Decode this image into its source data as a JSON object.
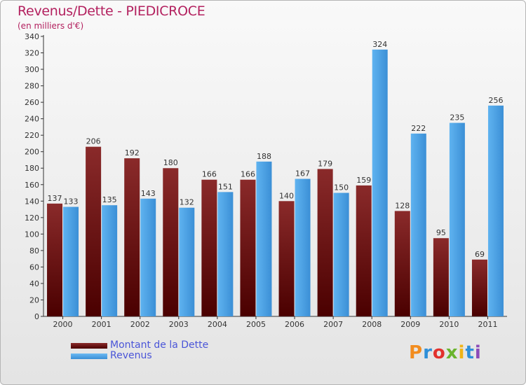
{
  "header": {
    "title": "Revenus/Dette - PIEDICROCE",
    "subtitle": "(en milliers d'€)"
  },
  "colors": {
    "debt": "#7a1717",
    "revenue": "#4ea3e6",
    "title": "#b3215f",
    "legend_text": "#4a55d8"
  },
  "legend": {
    "items": [
      {
        "label": "Montant de la Dette",
        "color": "#6b0f10"
      },
      {
        "label": "Revenus",
        "color": "#4ea3e6"
      }
    ]
  },
  "logo": {
    "text": "Proxiti"
  },
  "chart_data": {
    "type": "bar",
    "title": "Revenus/Dette - PIEDICROCE",
    "subtitle": "(en milliers d'€)",
    "xlabel": "",
    "ylabel": "",
    "categories": [
      "2000",
      "2001",
      "2002",
      "2003",
      "2004",
      "2005",
      "2006",
      "2007",
      "2008",
      "2009",
      "2010",
      "2011"
    ],
    "series": [
      {
        "name": "Montant de la Dette",
        "values": [
          137,
          206,
          192,
          180,
          166,
          166,
          140,
          179,
          159,
          128,
          95,
          69
        ]
      },
      {
        "name": "Revenus",
        "values": [
          133,
          135,
          143,
          132,
          151,
          188,
          167,
          150,
          324,
          222,
          235,
          256
        ]
      }
    ],
    "ylim": [
      0,
      340
    ],
    "ytick_step": 20,
    "grid": false,
    "legend_position": "bottom-left",
    "data_labels": true
  }
}
